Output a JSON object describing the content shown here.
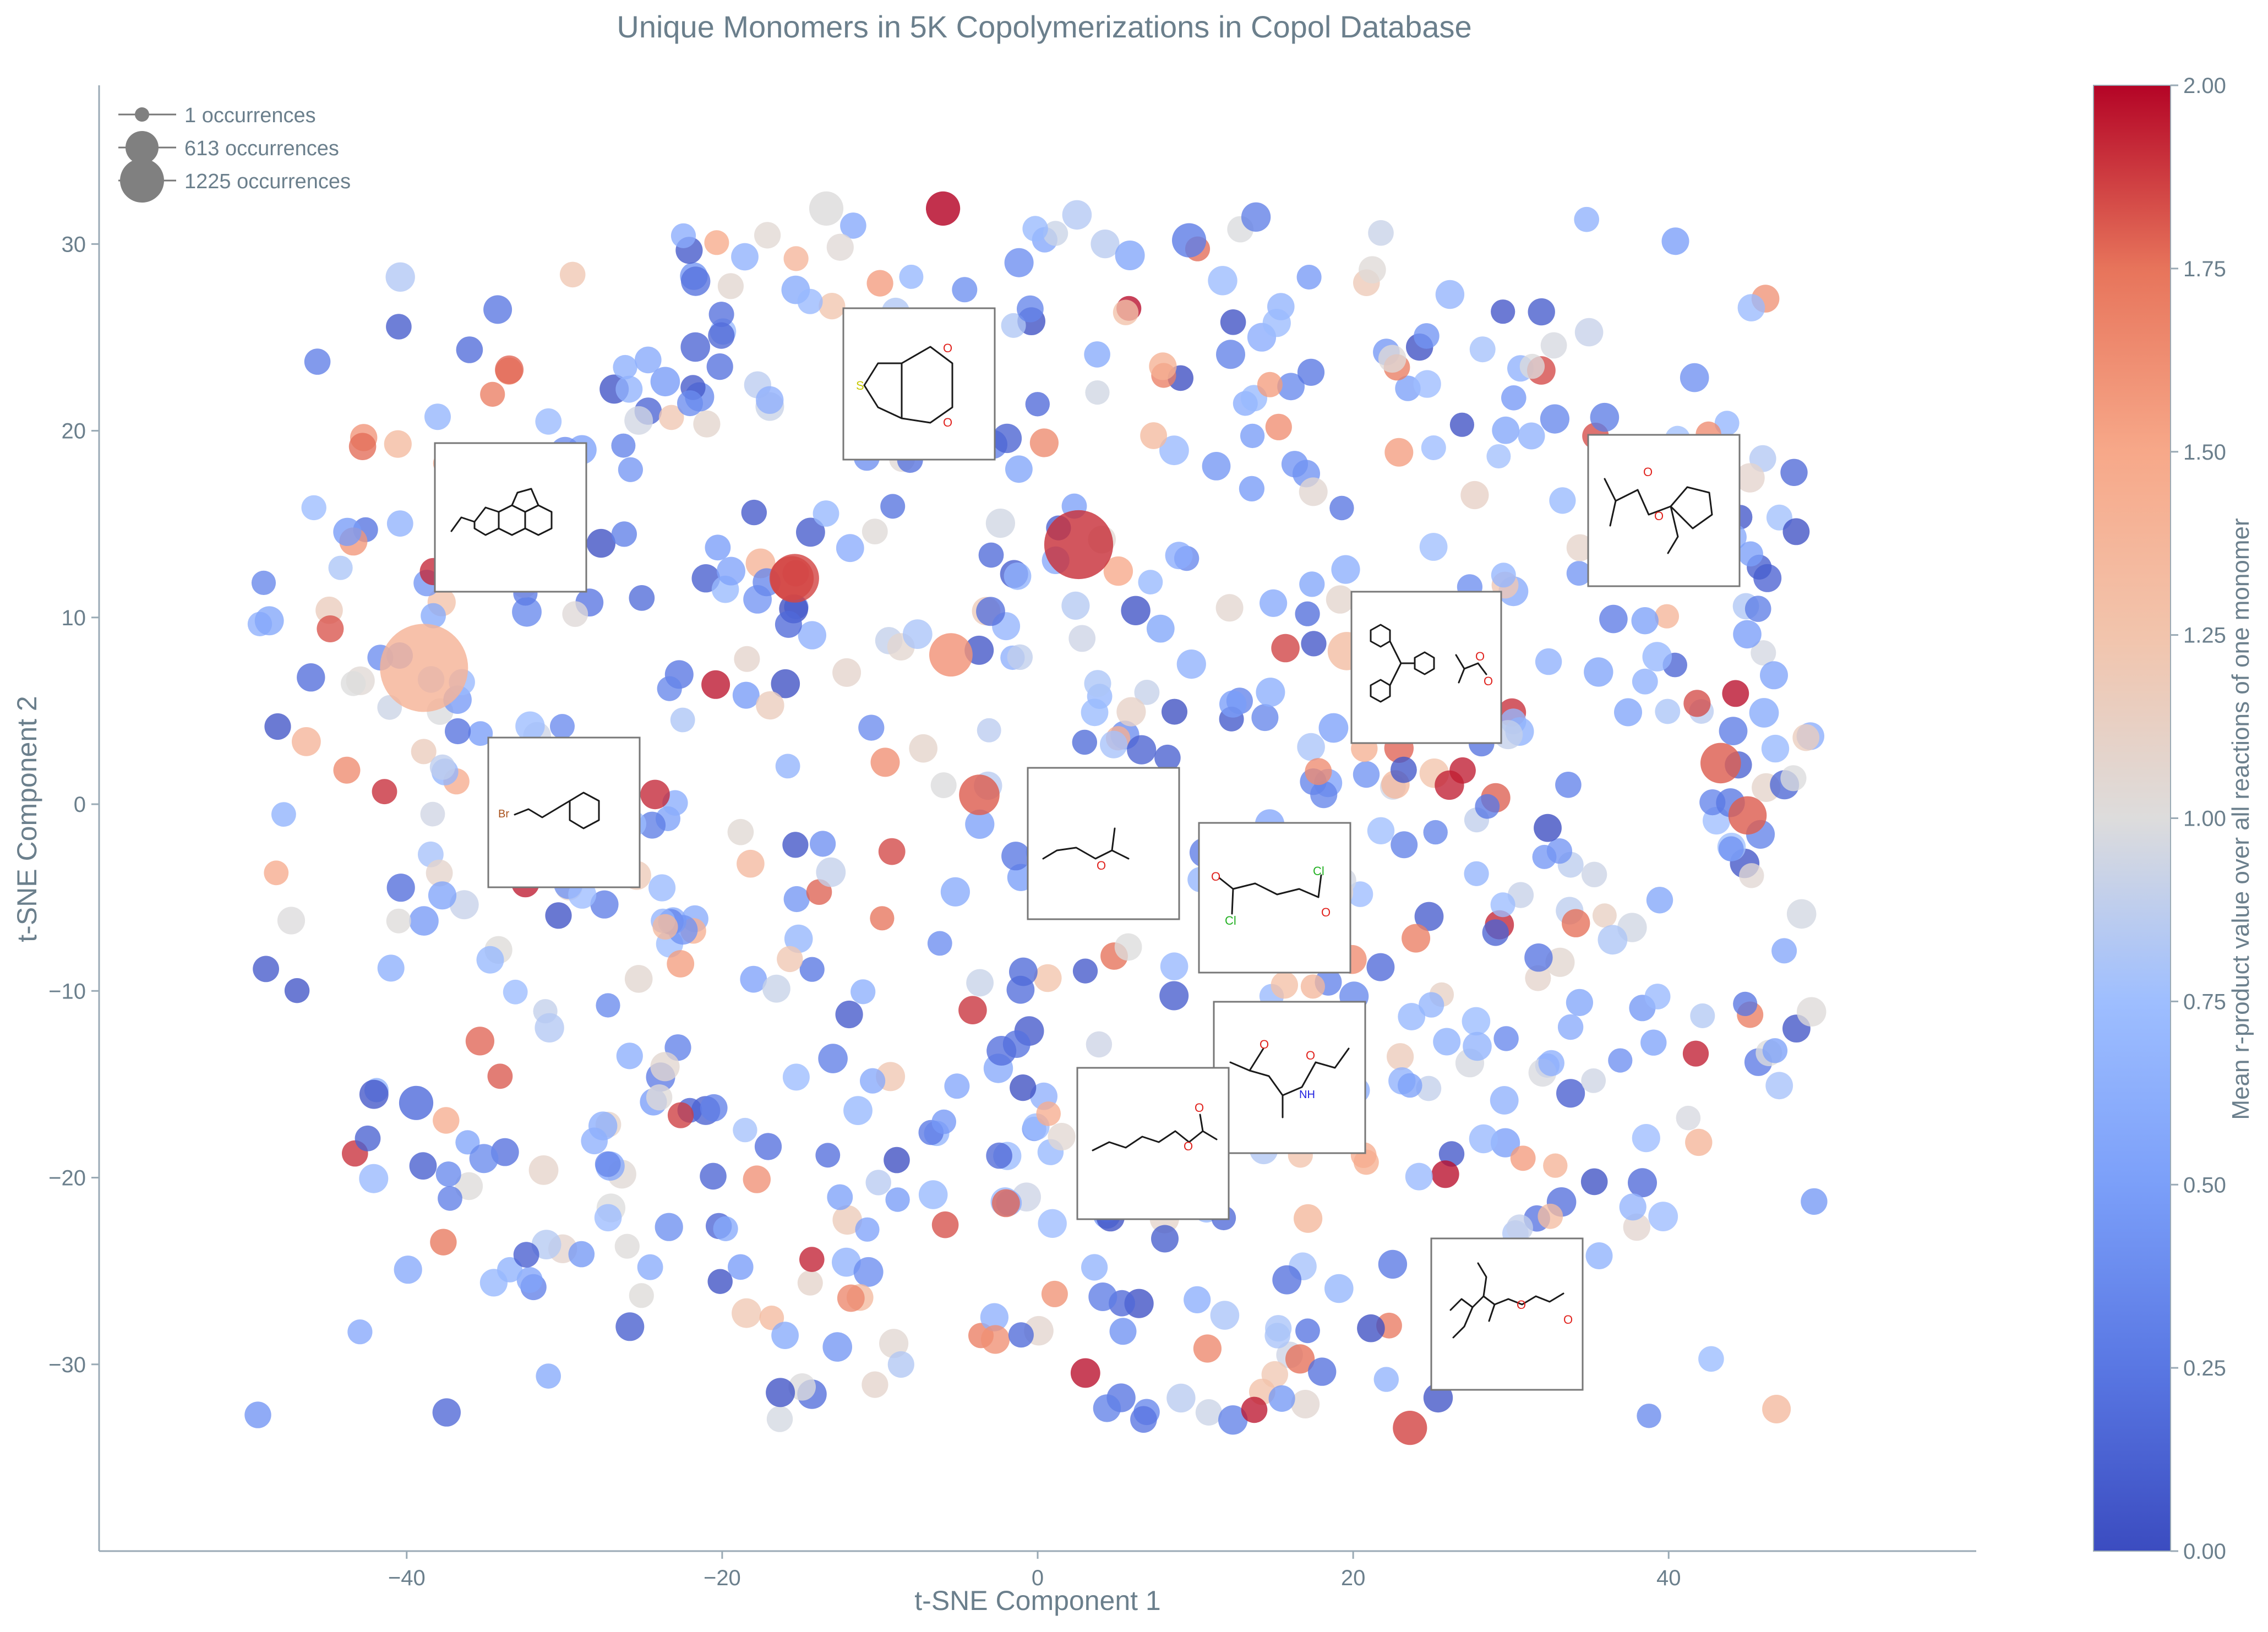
{
  "chart_data": {
    "type": "scatter",
    "title": "Unique Monomers in 5K Copolymerizations in Copol Database",
    "xlabel": "t-SNE Component 1",
    "ylabel": "t-SNE Component 2",
    "xlim": [
      -59.5,
      59.5
    ],
    "ylim": [
      -40,
      38.5
    ],
    "xticks": [
      -40,
      -20,
      0,
      20,
      40
    ],
    "xtick_labels": [
      "−40",
      "−20",
      "0",
      "20",
      "40"
    ],
    "yticks": [
      -30,
      -20,
      -10,
      0,
      10,
      20,
      30
    ],
    "ytick_labels": [
      "−30",
      "−20",
      "−10",
      "0",
      "10",
      "20",
      "30"
    ],
    "colorbar": {
      "label": "Mean r-product value over all reactions of one monomer",
      "min": 0.0,
      "max": 2.0,
      "colormap": "coolwarm",
      "ticks": [
        0.0,
        0.25,
        0.5,
        0.75,
        1.0,
        1.25,
        1.5,
        1.75,
        2.0
      ],
      "tick_labels": [
        "0.00",
        "0.25",
        "0.50",
        "0.75",
        "1.00",
        "1.25",
        "1.50",
        "1.75",
        "2.00"
      ]
    },
    "size_legend": {
      "placement": "top-left",
      "entries": [
        {
          "label": "1 occurrences",
          "occurrences": 1
        },
        {
          "label": "613 occurrences",
          "occurrences": 613
        },
        {
          "label": "1225 occurrences",
          "occurrences": 1225
        }
      ]
    },
    "grid": false,
    "highlighted_points": [
      {
        "x": -38.9,
        "y": 7.3,
        "value": 1.4,
        "occurrences": 1225
      },
      {
        "x": 2.6,
        "y": 13.9,
        "value": 1.9,
        "occurrences": 600
      },
      {
        "x": -15.4,
        "y": 12.1,
        "value": 1.85,
        "occurrences": 180
      },
      {
        "x": -6.0,
        "y": 31.9,
        "value": 2.0,
        "occurrences": 30
      },
      {
        "x": -13.4,
        "y": 31.9,
        "value": 1.0,
        "occurrences": 30
      },
      {
        "x": 23.6,
        "y": -33.4,
        "value": 1.85,
        "occurrences": 30
      },
      {
        "x": -39.4,
        "y": -16.0,
        "value": 0.2,
        "occurrences": 30
      },
      {
        "x": 9.6,
        "y": 30.2,
        "value": 0.3,
        "occurrences": 30
      },
      {
        "x": 45.0,
        "y": -0.6,
        "value": 1.8,
        "occurrences": 60
      },
      {
        "x": -3.7,
        "y": 0.5,
        "value": 1.8,
        "occurrences": 80
      },
      {
        "x": -5.5,
        "y": 8.0,
        "value": 1.6,
        "occurrences": 110
      },
      {
        "x": 43.3,
        "y": 2.2,
        "value": 1.8,
        "occurrences": 80
      },
      {
        "x": 19.6,
        "y": 8.2,
        "value": 1.3,
        "occurrences": 60
      },
      {
        "x": -15.6,
        "y": 12.1,
        "value": 1.85,
        "occurrences": 120
      }
    ],
    "background_points": {
      "count": 900,
      "x_range": [
        -49.5,
        49.5
      ],
      "y_range": [
        -33.5,
        32.0
      ],
      "value_range": [
        0.0,
        2.0
      ],
      "note_values_mostly_below_1": true
    },
    "insets": [
      "2-vinylphenanthrene",
      "3,4-ethylenedioxythiophene",
      "1-ethylcyclopentyl methacrylate",
      "triphenylmethyl methacrylate",
      "beta-bromostyrene",
      "isopropyl vinyl ether",
      "fumaryl chloride",
      "diacetone acrylamide",
      "sorbyl acetate",
      "branched alkyl acrylate"
    ]
  }
}
